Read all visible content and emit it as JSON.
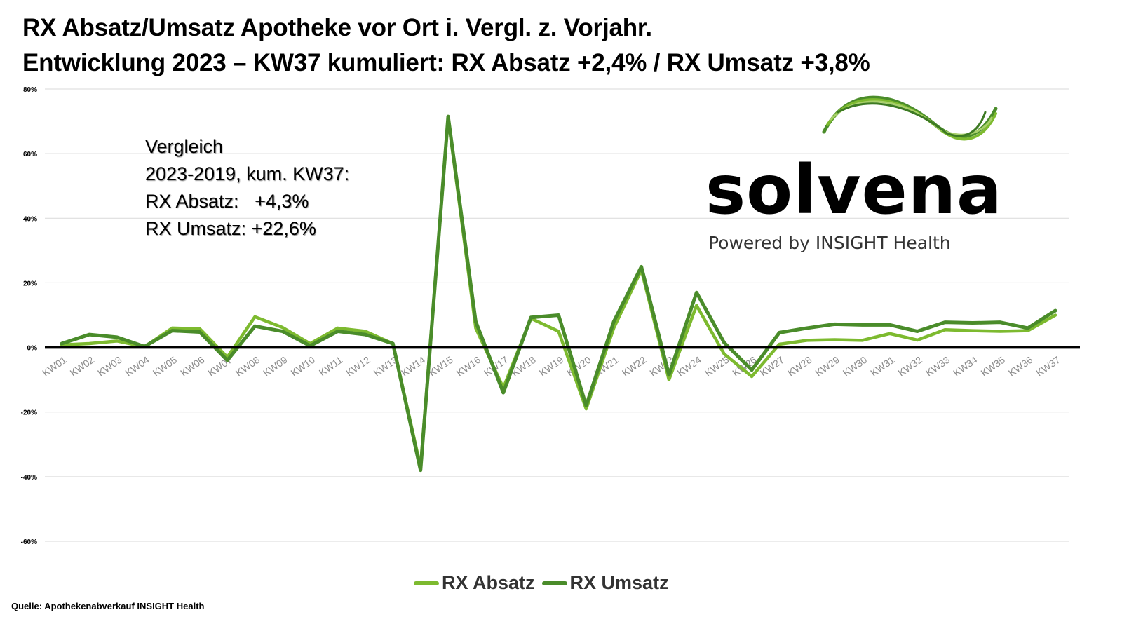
{
  "title": {
    "line1": "RX Absatz/Umsatz Apotheke vor Ort i. Vergl. z. Vorjahr.",
    "line2": "Entwicklung 2023 – KW37 kumuliert: RX Absatz +2,4% / RX Umsatz +3,8%"
  },
  "annotation": {
    "line1": "Vergleich",
    "line2": "2023-2019, kum. KW37:",
    "line3": "RX Absatz:   +4,3%",
    "line4": "RX Umsatz: +22,6%"
  },
  "logo": {
    "name": "solvena",
    "tagline": "Powered by INSIGHT Health"
  },
  "source": "Quelle: Apothekenabverkauf INSIGHT Health",
  "chart_data": {
    "type": "line",
    "ylim": [
      -60,
      80
    ],
    "yticks": [
      80,
      60,
      40,
      20,
      0,
      -20,
      -40,
      -60
    ],
    "ytick_labels": [
      "80%",
      "60%",
      "40%",
      "20%",
      "0%",
      "-20%",
      "-40%",
      "-60%"
    ],
    "grid": true,
    "legend_position": "bottom",
    "categories": [
      "KW01",
      "KW02",
      "KW03",
      "KW04",
      "KW05",
      "KW06",
      "KW07",
      "KW08",
      "KW09",
      "KW10",
      "KW11",
      "KW12",
      "KW13",
      "KW14",
      "KW15",
      "KW16",
      "KW17",
      "KW18",
      "KW19",
      "KW20",
      "KW21",
      "KW22",
      "KW23",
      "KW24",
      "KW25",
      "KW26",
      "KW27",
      "KW28",
      "KW29",
      "KW30",
      "KW31",
      "KW32",
      "KW33",
      "KW34",
      "KW35",
      "KW36",
      "KW37"
    ],
    "series": [
      {
        "name": "RX Absatz",
        "color": "#7dba2f",
        "values": [
          0.8,
          1.2,
          2.0,
          0.2,
          6.0,
          5.8,
          -3.0,
          9.5,
          6.2,
          1.2,
          6.0,
          5.0,
          1.2,
          -37.0,
          71.0,
          6.0,
          -12.5,
          9.0,
          5.0,
          -19.0,
          6.0,
          24.0,
          -10.0,
          13.0,
          -2.0,
          -9.0,
          1.0,
          2.2,
          2.4,
          2.2,
          4.3,
          2.3,
          5.5,
          5.2,
          5.0,
          5.2,
          10.0
        ]
      },
      {
        "name": "RX Umsatz",
        "color": "#4a8c2a",
        "values": [
          1.2,
          4.0,
          3.2,
          0.3,
          5.2,
          4.8,
          -4.0,
          6.6,
          5.0,
          0.5,
          5.0,
          4.0,
          1.2,
          -38.0,
          71.5,
          8.0,
          -14.0,
          9.3,
          10.0,
          -18.0,
          8.0,
          25.0,
          -8.5,
          17.0,
          1.5,
          -7.0,
          4.6,
          6.0,
          7.2,
          7.0,
          7.0,
          5.0,
          7.8,
          7.6,
          7.8,
          6.0,
          11.4
        ]
      }
    ]
  }
}
